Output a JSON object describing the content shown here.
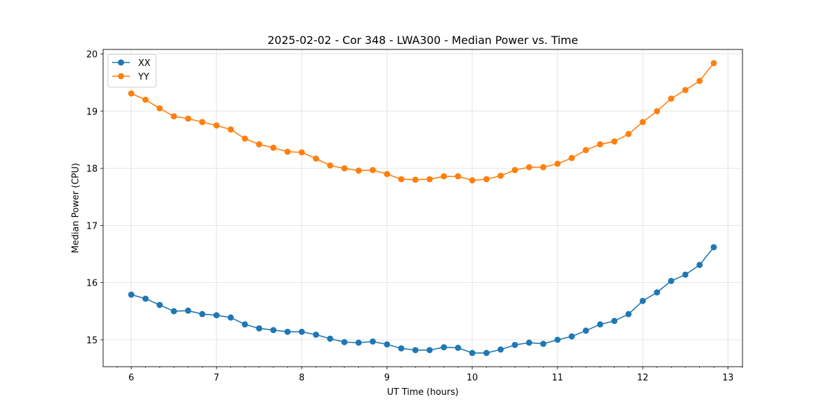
{
  "chart_data": {
    "type": "line",
    "title": "2025-02-02 - Cor 348 - LWA300 - Median Power vs. Time",
    "xlabel": "UT Time (hours)",
    "ylabel": "Median Power (CPU)",
    "xlim": [
      5.67,
      13.17
    ],
    "ylim": [
      14.53,
      20.08
    ],
    "xticks": [
      6,
      7,
      8,
      9,
      10,
      11,
      12,
      13
    ],
    "yticks": [
      15,
      16,
      17,
      18,
      19,
      20
    ],
    "grid": true,
    "legend_position": "top-left",
    "x": [
      6.0,
      6.167,
      6.333,
      6.5,
      6.667,
      6.833,
      7.0,
      7.167,
      7.333,
      7.5,
      7.667,
      7.833,
      8.0,
      8.167,
      8.333,
      8.5,
      8.667,
      8.833,
      9.0,
      9.167,
      9.333,
      9.5,
      9.667,
      9.833,
      10.0,
      10.167,
      10.333,
      10.5,
      10.667,
      10.833,
      11.0,
      11.167,
      11.333,
      11.5,
      11.667,
      11.833,
      12.0,
      12.167,
      12.333,
      12.5,
      12.667,
      12.833
    ],
    "series": [
      {
        "name": "XX",
        "color": "#1f77b4",
        "values": [
          15.79,
          15.72,
          15.61,
          15.5,
          15.51,
          15.45,
          15.43,
          15.39,
          15.27,
          15.2,
          15.17,
          15.14,
          15.14,
          15.09,
          15.02,
          14.96,
          14.95,
          14.97,
          14.92,
          14.85,
          14.82,
          14.82,
          14.87,
          14.86,
          14.77,
          14.77,
          14.83,
          14.91,
          14.95,
          14.93,
          15.0,
          15.06,
          15.16,
          15.27,
          15.33,
          15.45,
          15.68,
          15.83,
          16.03,
          16.14,
          16.31,
          16.62
        ]
      },
      {
        "name": "YY",
        "color": "#ff7f0e",
        "values": [
          19.31,
          19.2,
          19.05,
          18.91,
          18.87,
          18.81,
          18.75,
          18.68,
          18.52,
          18.42,
          18.36,
          18.29,
          18.28,
          18.17,
          18.05,
          18.0,
          17.96,
          17.97,
          17.9,
          17.81,
          17.8,
          17.81,
          17.86,
          17.86,
          17.79,
          17.81,
          17.87,
          17.97,
          18.02,
          18.02,
          18.08,
          18.18,
          18.32,
          18.42,
          18.47,
          18.6,
          18.81,
          19.0,
          19.22,
          19.37,
          19.53,
          19.84
        ]
      }
    ]
  }
}
